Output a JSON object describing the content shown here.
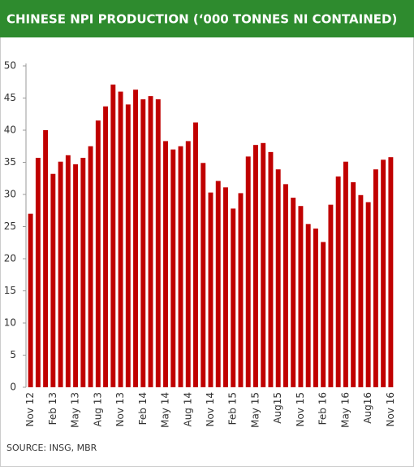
{
  "chart_data": {
    "type": "bar",
    "title": "CHINESE NPI PRODUCTION (‘000 TONNES NI CONTAINED)",
    "source": "SOURCE: INSG, MBR",
    "color": "#c00000",
    "categories": [
      "Nov 12",
      null,
      null,
      "Feb 13",
      null,
      null,
      "May 13",
      null,
      null,
      "Aug 13",
      null,
      null,
      "Nov 13",
      null,
      null,
      "Feb 14",
      null,
      null,
      "May 14",
      null,
      null,
      "Aug 14",
      null,
      null,
      "Nov 14",
      null,
      null,
      "Feb 15",
      null,
      null,
      "May 15",
      null,
      null,
      "Aug15",
      null,
      null,
      "Nov 15",
      null,
      null,
      "Feb 16",
      null,
      null,
      "May 16",
      null,
      null,
      "Aug16",
      null,
      null,
      "Nov 16"
    ],
    "values": [
      27,
      35.7,
      40,
      33.2,
      35.1,
      36.1,
      34.7,
      35.7,
      37.5,
      41.5,
      43.7,
      47.1,
      46,
      44,
      46.3,
      44.8,
      45.3,
      44.8,
      38.3,
      37,
      37.5,
      38.3,
      41.2,
      34.9,
      30.3,
      32.1,
      31.1,
      27.8,
      30.2,
      35.9,
      37.7,
      38,
      36.6,
      33.9,
      31.6,
      29.5,
      28.2,
      25.4,
      24.7,
      22.6,
      28.4,
      32.8,
      35.1,
      31.9,
      29.9,
      28.8,
      33.9,
      35.4,
      35.8
    ],
    "ylim": [
      0,
      50
    ],
    "yticks": [
      0,
      5,
      10,
      15,
      20,
      25,
      30,
      35,
      40,
      45,
      50
    ]
  }
}
